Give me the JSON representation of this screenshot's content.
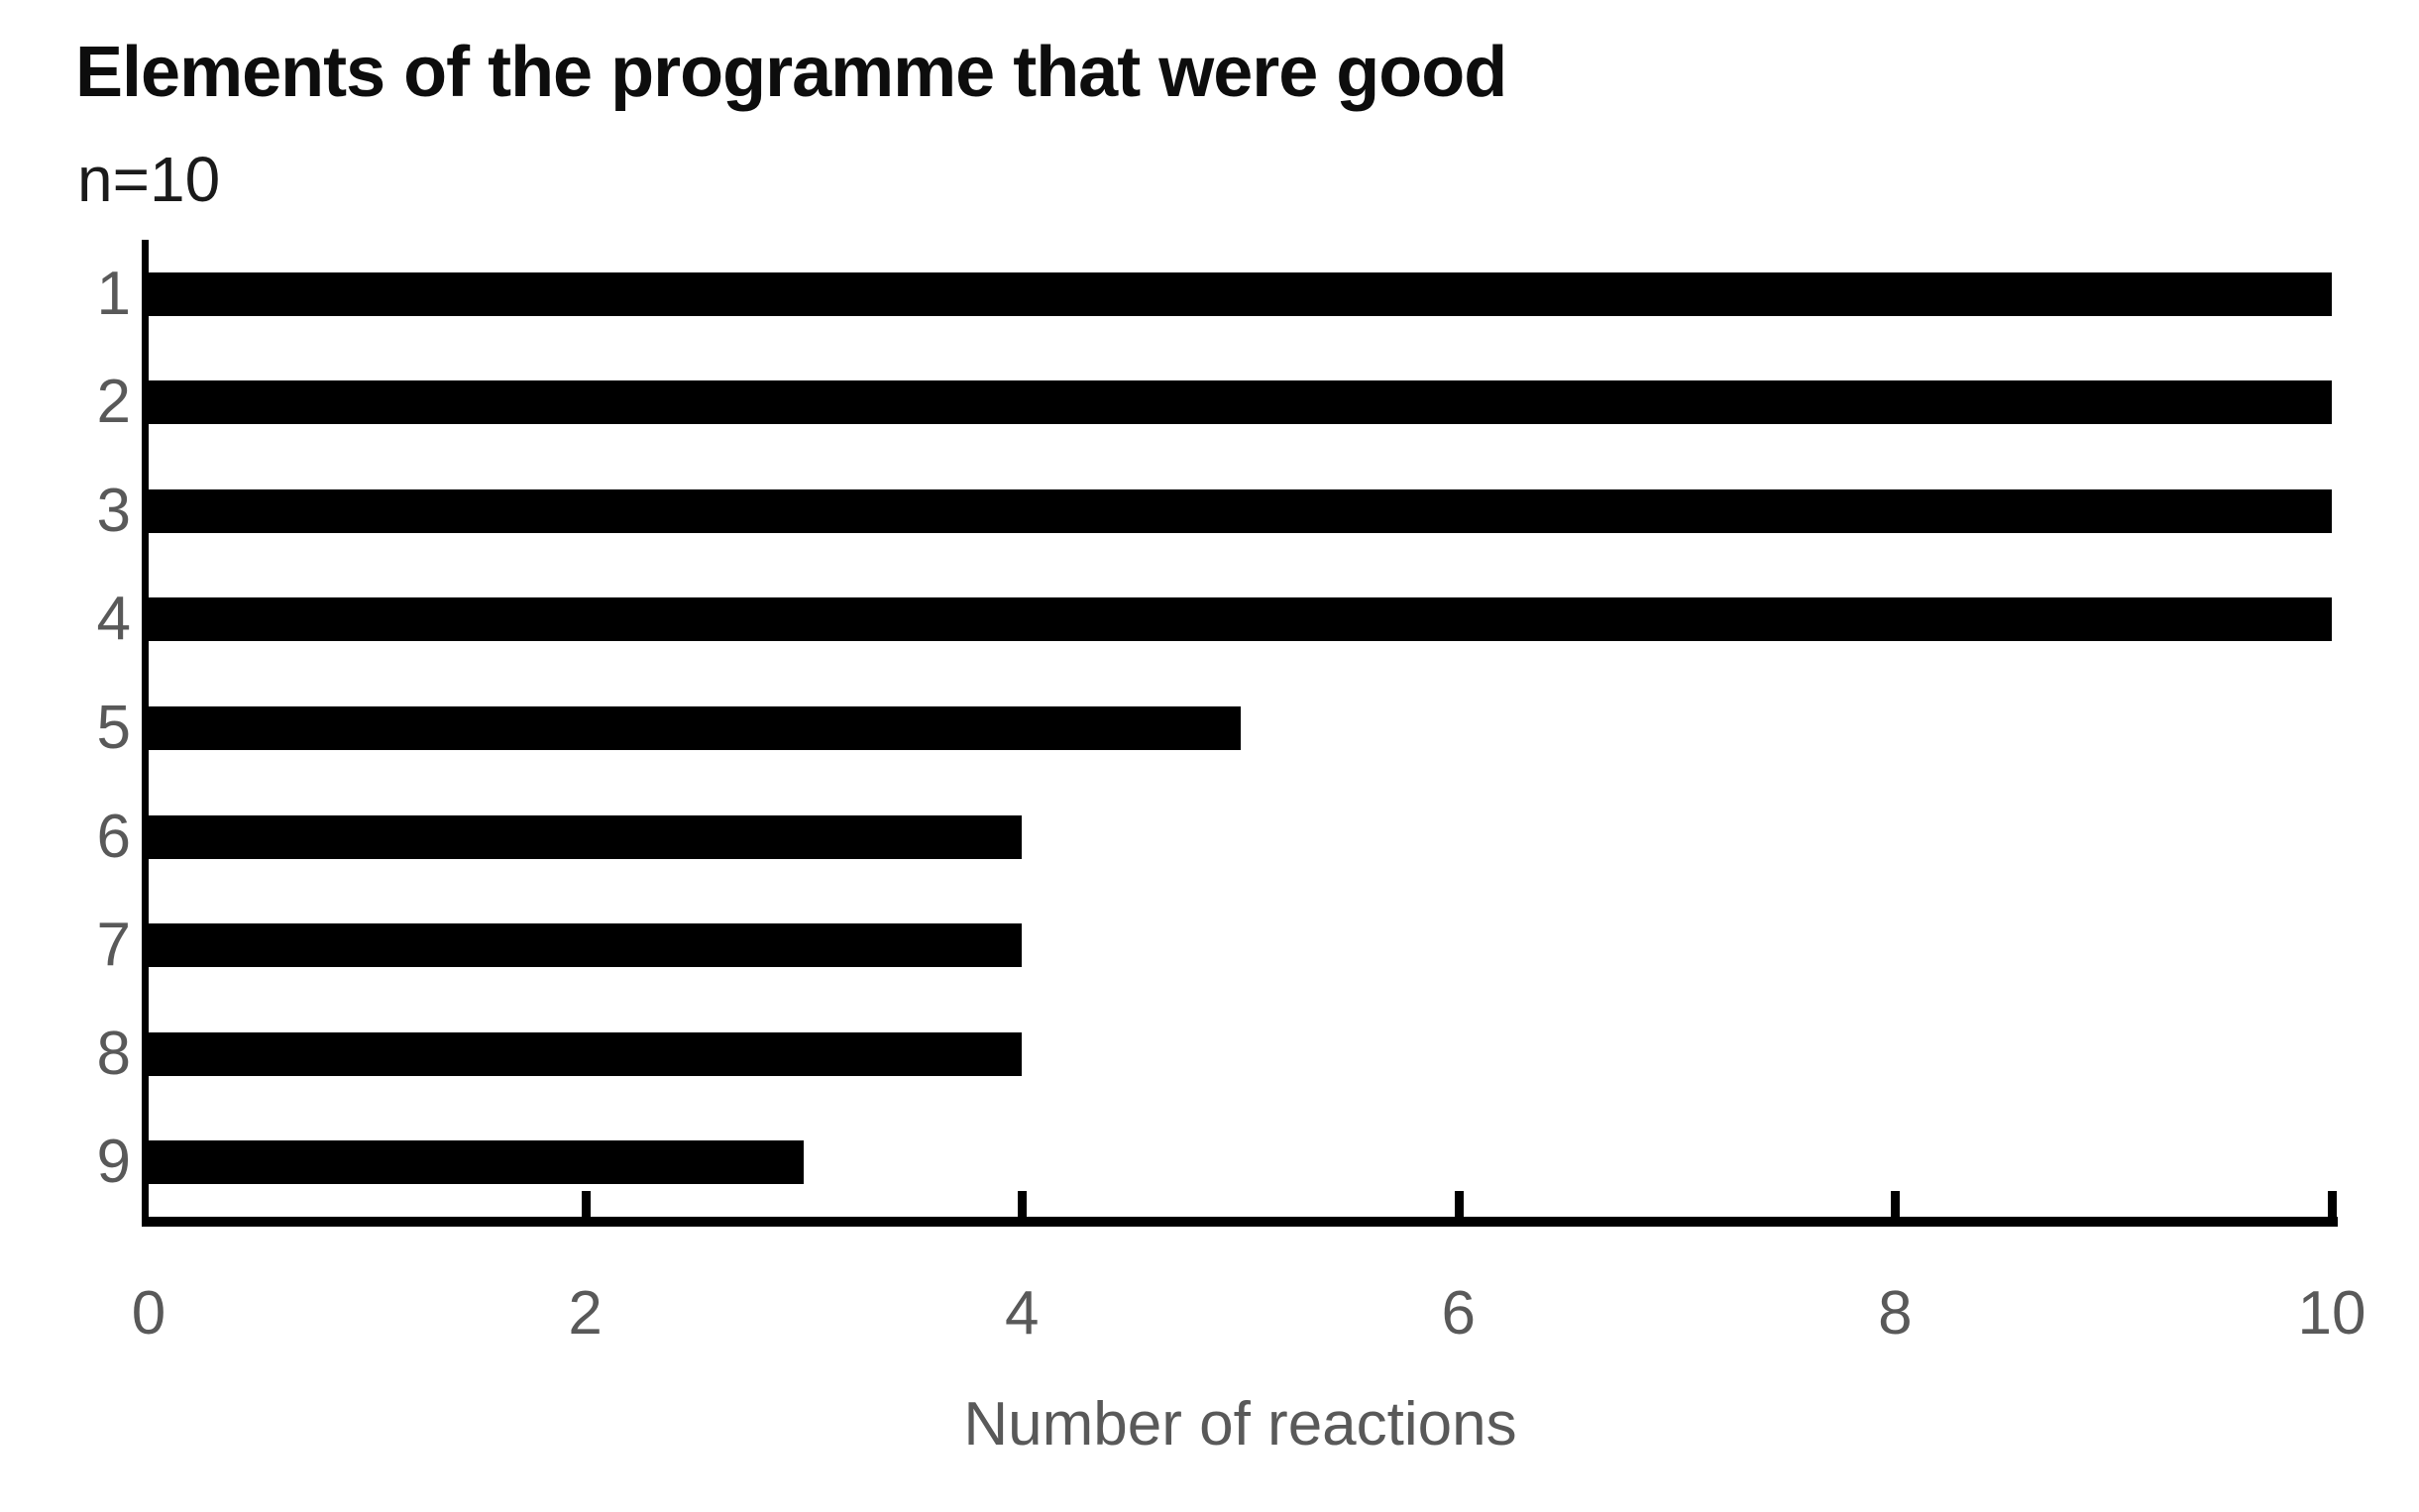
{
  "chart": {
    "title": "Elements of the programme that were good",
    "subtitle": "n=10",
    "xlabel": "Number of reactions"
  },
  "chart_data": {
    "type": "bar",
    "orientation": "horizontal",
    "title": "Elements of the programme that were good",
    "subtitle": "n=10",
    "categories": [
      "1",
      "2",
      "3",
      "4",
      "5",
      "6",
      "7",
      "8",
      "9"
    ],
    "values": [
      10,
      10,
      10,
      10,
      5,
      4,
      4,
      4,
      3
    ],
    "xlabel": "Number of reactions",
    "ylabel": "",
    "xlim": [
      0,
      10
    ],
    "xticks": [
      0,
      2,
      4,
      6,
      8,
      10
    ],
    "grid": false,
    "legend": false,
    "tick_style": "inside",
    "bar_color": "#000000",
    "axis_color": "#000000",
    "label_color": "#595959"
  }
}
